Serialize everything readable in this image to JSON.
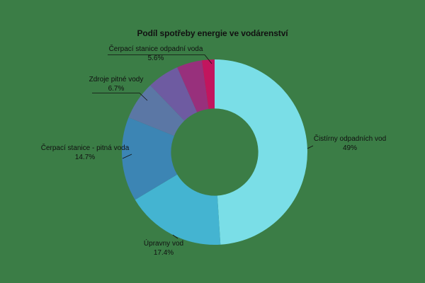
{
  "colors": {
    "background": "#3b7d46",
    "text": "#111111"
  },
  "chart_data": {
    "type": "pie",
    "subtype": "donut",
    "title": "Podíl spotřeby energie ve vodárenství",
    "hole_ratio": 0.47,
    "direction": "clockwise",
    "start_angle_deg": 0,
    "legend": "none",
    "slices": [
      {
        "key": "cistirny-odpadnich-vod",
        "label": "Čistírny odpadních vod",
        "value": 49.0,
        "pct_label": "49%",
        "color": "#7adee7"
      },
      {
        "key": "upravny-vod",
        "label": "Úpravny vod",
        "value": 17.4,
        "pct_label": "17.4%",
        "color": "#44b4d1"
      },
      {
        "key": "cerpaci-stanice-pitna-voda",
        "label": "Čerpací stanice - pitná voda",
        "value": 14.7,
        "pct_label": "14.7%",
        "color": "#3c85b4"
      },
      {
        "key": "zdroje-pitne-vody",
        "label": "Zdroje pitné vody",
        "value": 6.7,
        "pct_label": "6.7%",
        "color": "#5b77a5"
      },
      {
        "key": "cerpaci-stanice-odpadni-voda",
        "label": "Čerpací stanice odpadní voda",
        "value": 5.6,
        "pct_label": "5.6%",
        "color": "#6e5ba1"
      },
      {
        "key": "unlabeled-magenta",
        "label": "",
        "value": 4.4,
        "pct_label": "",
        "color": "#98307c"
      },
      {
        "key": "unlabeled-crimson",
        "label": "",
        "value": 2.2,
        "pct_label": "",
        "color": "#c2155e"
      }
    ]
  }
}
